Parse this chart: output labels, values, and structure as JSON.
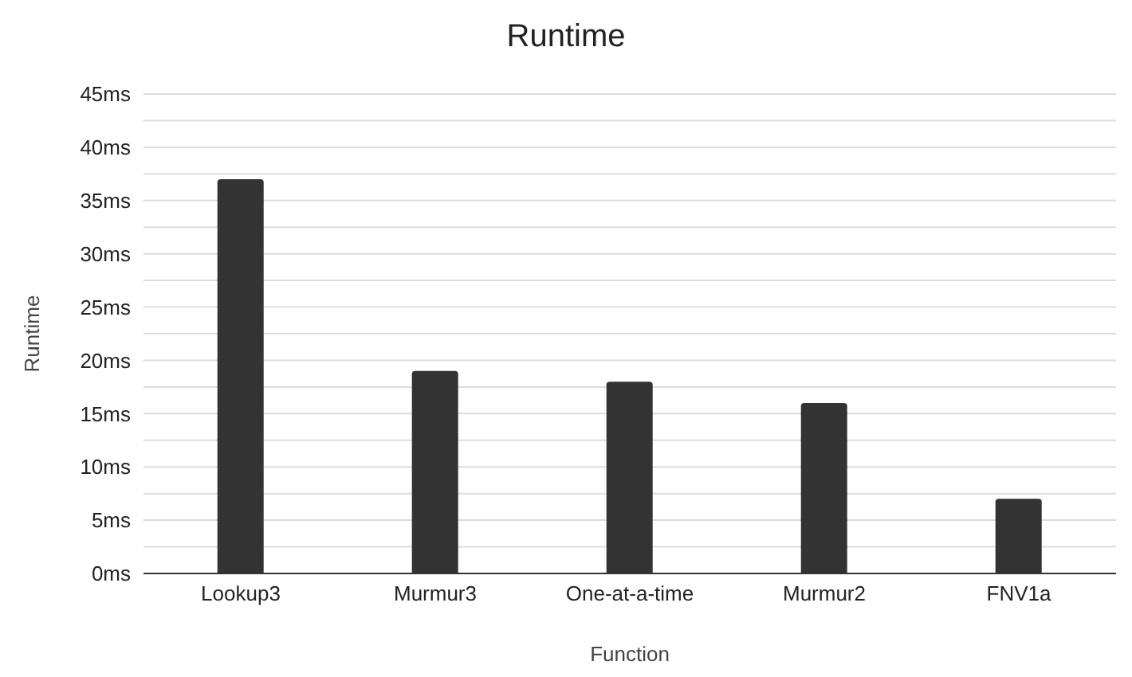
{
  "chart_data": {
    "type": "bar",
    "title": "Runtime",
    "xlabel": "Function",
    "ylabel": "Runtime",
    "categories": [
      "Lookup3",
      "Murmur3",
      "One-at-a-time",
      "Murmur2",
      "FNV1a"
    ],
    "values": [
      37,
      19,
      18,
      16,
      7
    ],
    "color": "#333333",
    "ylim": [
      0,
      45
    ],
    "yticks": [
      {
        "value": 0,
        "label": "0ms"
      },
      {
        "value": 2.5,
        "label": null
      },
      {
        "value": 5,
        "label": "5ms"
      },
      {
        "value": 7.5,
        "label": null
      },
      {
        "value": 10,
        "label": "10ms"
      },
      {
        "value": 12.5,
        "label": null
      },
      {
        "value": 15,
        "label": "15ms"
      },
      {
        "value": 17.5,
        "label": null
      },
      {
        "value": 20,
        "label": "20ms"
      },
      {
        "value": 22.5,
        "label": null
      },
      {
        "value": 25,
        "label": "25ms"
      },
      {
        "value": 27.5,
        "label": null
      },
      {
        "value": 30,
        "label": "30ms"
      },
      {
        "value": 32.5,
        "label": null
      },
      {
        "value": 35,
        "label": "35ms"
      },
      {
        "value": 37.5,
        "label": null
      },
      {
        "value": 40,
        "label": "40ms"
      },
      {
        "value": 42.5,
        "label": null
      },
      {
        "value": 45,
        "label": "45ms"
      }
    ],
    "grid": "y",
    "legend": false
  }
}
